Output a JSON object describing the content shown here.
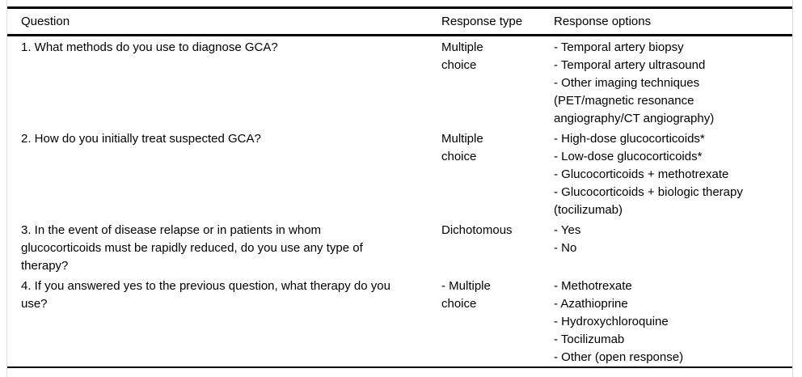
{
  "table": {
    "header": {
      "question": "Question",
      "response_type": "Response type",
      "response_options": "Response options"
    },
    "rows": [
      {
        "question_lines": [
          "1. What methods do you use to diagnose GCA?"
        ],
        "type_lines": [
          "Multiple",
          "choice"
        ],
        "option_lines": [
          "- Temporal artery biopsy",
          "- Temporal artery ultrasound",
          "- Other imaging techniques",
          "(PET/magnetic resonance",
          "angiography/CT angiography)"
        ]
      },
      {
        "question_lines": [
          "2. How do you initially treat suspected GCA?"
        ],
        "type_lines": [
          "Multiple",
          "choice"
        ],
        "option_lines": [
          "- High-dose glucocorticoids*",
          "- Low-dose glucocorticoids*",
          "- Glucocorticoids + methotrexate",
          "- Glucocorticoids + biologic therapy",
          "(tocilizumab)"
        ]
      },
      {
        "question_lines": [
          "3. In the event of disease relapse or in patients in whom",
          "glucocorticoids must be rapidly reduced, do you use any type of",
          "therapy?"
        ],
        "type_lines": [
          "Dichotomous"
        ],
        "option_lines": [
          "- Yes",
          "- No"
        ]
      },
      {
        "question_lines": [
          "4. If you answered yes to the previous question, what therapy do you",
          "use?"
        ],
        "type_lines": [
          "- Multiple",
          "choice"
        ],
        "option_lines": [
          "- Methotrexate",
          "- Azathioprine",
          "- Hydroxychloroquine",
          "- Tocilizumab",
          "- Other (open response)"
        ]
      }
    ]
  },
  "colors": {
    "rule": "#000000",
    "edge_line": "#dcdcdc",
    "text": "#000000",
    "background": "#ffffff"
  }
}
